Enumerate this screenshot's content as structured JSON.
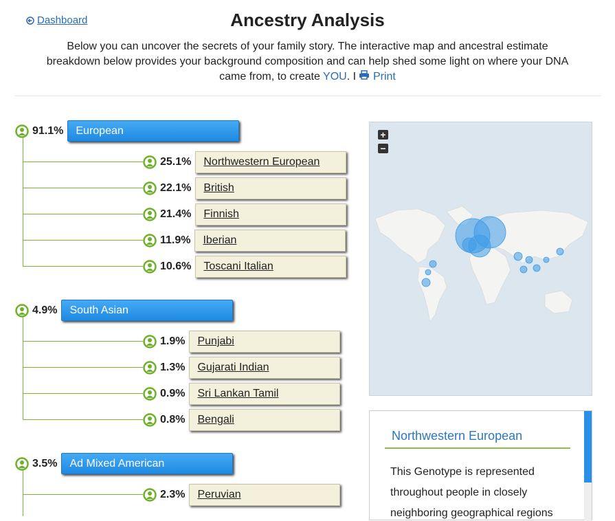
{
  "header": {
    "back_link": "Dashboard",
    "title": "Ancestry Analysis",
    "intro_lines": [
      "Below you can uncover the secrets of your family story. The interactive map and ancestral estimate",
      "breakdown below provides your background composition and can help shed some light on where your DNA",
      "came from, to create"
    ],
    "you": "YOU",
    "separator": ". I",
    "print": "Print"
  },
  "groups": [
    {
      "percent": "91.1%",
      "name": "European",
      "children": [
        {
          "percent": "25.1%",
          "name": "Northwestern European"
        },
        {
          "percent": "22.1%",
          "name": "British"
        },
        {
          "percent": "21.4%",
          "name": "Finnish"
        },
        {
          "percent": "11.9%",
          "name": "Iberian"
        },
        {
          "percent": "10.6%",
          "name": "Toscani Italian"
        }
      ]
    },
    {
      "percent": "4.9%",
      "name": "South Asian",
      "children": [
        {
          "percent": "1.9%",
          "name": "Punjabi"
        },
        {
          "percent": "1.3%",
          "name": "Gujarati Indian"
        },
        {
          "percent": "0.9%",
          "name": "Sri Lankan Tamil"
        },
        {
          "percent": "0.8%",
          "name": "Bengali"
        }
      ]
    },
    {
      "percent": "3.5%",
      "name": "Ad Mixed American",
      "children": [
        {
          "percent": "2.3%",
          "name": "Peruvian"
        }
      ]
    }
  ],
  "map": {
    "zoom_in": "+",
    "zoom_out": "−"
  },
  "info_panel": {
    "title": "Northwestern European",
    "lines": [
      "This Genotype is represented",
      "throughout people in closely",
      "neighboring geographical regions"
    ]
  }
}
